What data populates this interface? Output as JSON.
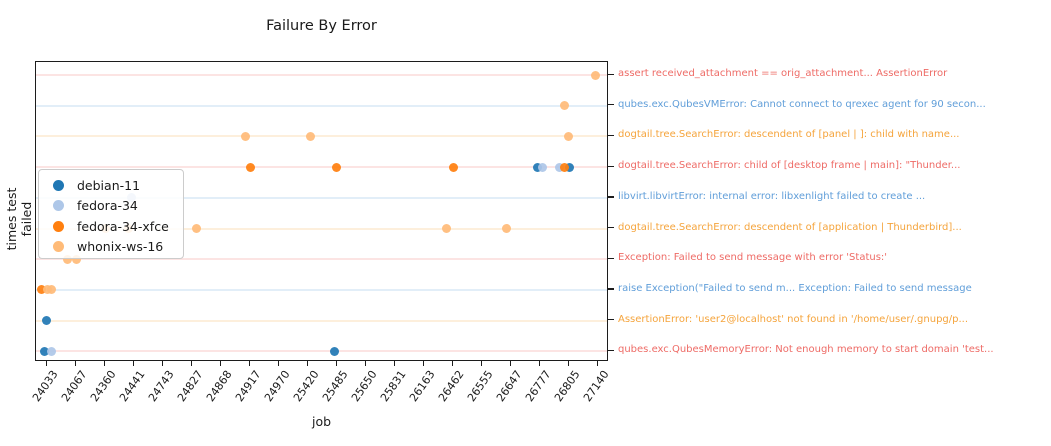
{
  "chart_data": {
    "type": "scatter",
    "title": "Failure By Error",
    "xlabel": "job",
    "ylabel": "times test failed",
    "grid": "horizontal pale lines, one per error row, tinted to match label color",
    "legend_position": "center-left inside plot, semi-transparent white box",
    "x_categories": [
      "24033",
      "24067",
      "24360",
      "24441",
      "24743",
      "24827",
      "24868",
      "24917",
      "24970",
      "25420",
      "25485",
      "25650",
      "25831",
      "26163",
      "26462",
      "26555",
      "26647",
      "26777",
      "26805",
      "27140"
    ],
    "series": [
      {
        "name": "debian-11",
        "color": "#1f77b4"
      },
      {
        "name": "fedora-34",
        "color": "#aec7e8"
      },
      {
        "name": "fedora-34-xfce",
        "color": "#ff7f0e"
      },
      {
        "name": "whonix-ws-16",
        "color": "#ffbb78"
      }
    ],
    "error_labels": [
      {
        "label": "assert received_attachment == orig_attachment... AssertionError",
        "color": "#ee6b66"
      },
      {
        "label": "qubes.exc.QubesVMError: Cannot connect to qrexec agent for 90 secon...",
        "color": "#609ed9"
      },
      {
        "label": "dogtail.tree.SearchError: descendent of [panel | ]: child with name...",
        "color": "#f5a43c"
      },
      {
        "label": "dogtail.tree.SearchError: child of [desktop frame | main]: \"Thunder...",
        "color": "#ee6b66"
      },
      {
        "label": "libvirt.libvirtError: internal error: libxenlight failed to create ...",
        "color": "#609ed9"
      },
      {
        "label": "dogtail.tree.SearchError: descendent of [application | Thunderbird]...",
        "color": "#f5a43c"
      },
      {
        "label": "Exception: Failed to send message with error 'Status:'",
        "color": "#ee6b66"
      },
      {
        "label": "raise Exception(\"Failed to send m... Exception: Failed to send message",
        "color": "#609ed9"
      },
      {
        "label": "AssertionError: 'user2@localhost' not found in '/home/user/.gnupg/p...",
        "color": "#f5a43c"
      },
      {
        "label": "qubes.exc.QubesMemoryError: Not enough memory to start domain 'test...",
        "color": "#ee6b66"
      }
    ],
    "points": [
      {
        "series": "whonix-ws-16",
        "job": "27140",
        "error": 0,
        "dx": -0.1
      },
      {
        "series": "whonix-ws-16",
        "job": "26805",
        "error": 1,
        "dx": -0.14
      },
      {
        "series": "whonix-ws-16",
        "job": "24917",
        "error": 2,
        "dx": -0.14
      },
      {
        "series": "whonix-ws-16",
        "job": "25420",
        "error": 2,
        "dx": 0.1
      },
      {
        "series": "whonix-ws-16",
        "job": "26805",
        "error": 2,
        "dx": -0.03
      },
      {
        "series": "fedora-34-xfce",
        "job": "24917",
        "error": 3,
        "dx": 0.03
      },
      {
        "series": "fedora-34-xfce",
        "job": "25485",
        "error": 3,
        "dx": -0.03
      },
      {
        "series": "fedora-34-xfce",
        "job": "26462",
        "error": 3,
        "dx": 0.0
      },
      {
        "series": "debian-11",
        "job": "26777",
        "error": 3,
        "dx": -0.1
      },
      {
        "series": "fedora-34",
        "job": "26777",
        "error": 3,
        "dx": 0.1
      },
      {
        "series": "fedora-34",
        "job": "26805",
        "error": 3,
        "dx": -0.34
      },
      {
        "series": "debian-11",
        "job": "26805",
        "error": 3,
        "dx": 0.0
      },
      {
        "series": "fedora-34-xfce",
        "job": "26805",
        "error": 3,
        "dx": -0.14
      },
      {
        "series": "fedora-34",
        "job": "24441",
        "error": 4,
        "dx": -0.1
      },
      {
        "series": "whonix-ws-16",
        "job": "24360",
        "error": 5,
        "dx": 0.03
      },
      {
        "series": "whonix-ws-16",
        "job": "24441",
        "error": 5,
        "dx": -0.2
      },
      {
        "series": "whonix-ws-16",
        "job": "24827",
        "error": 5,
        "dx": 0.14
      },
      {
        "series": "whonix-ws-16",
        "job": "26462",
        "error": 5,
        "dx": -0.24
      },
      {
        "series": "whonix-ws-16",
        "job": "26647",
        "error": 5,
        "dx": -0.14
      },
      {
        "series": "whonix-ws-16",
        "job": "24067",
        "error": 6,
        "dx": -0.28
      },
      {
        "series": "whonix-ws-16",
        "job": "24067",
        "error": 6,
        "dx": 0.03
      },
      {
        "series": "fedora-34-xfce",
        "job": "24033",
        "error": 7,
        "dx": -0.2
      },
      {
        "series": "whonix-ws-16",
        "job": "24033",
        "error": 7,
        "dx": 0.0
      },
      {
        "series": "whonix-ws-16",
        "job": "24033",
        "error": 7,
        "dx": 0.15
      },
      {
        "series": "debian-11",
        "job": "24033",
        "error": 8,
        "dx": -0.03
      },
      {
        "series": "debian-11",
        "job": "24033",
        "error": 9,
        "dx": -0.1
      },
      {
        "series": "fedora-34",
        "job": "24033",
        "error": 9,
        "dx": 0.14
      },
      {
        "series": "debian-11",
        "job": "25485",
        "error": 9,
        "dx": -0.1
      }
    ]
  }
}
